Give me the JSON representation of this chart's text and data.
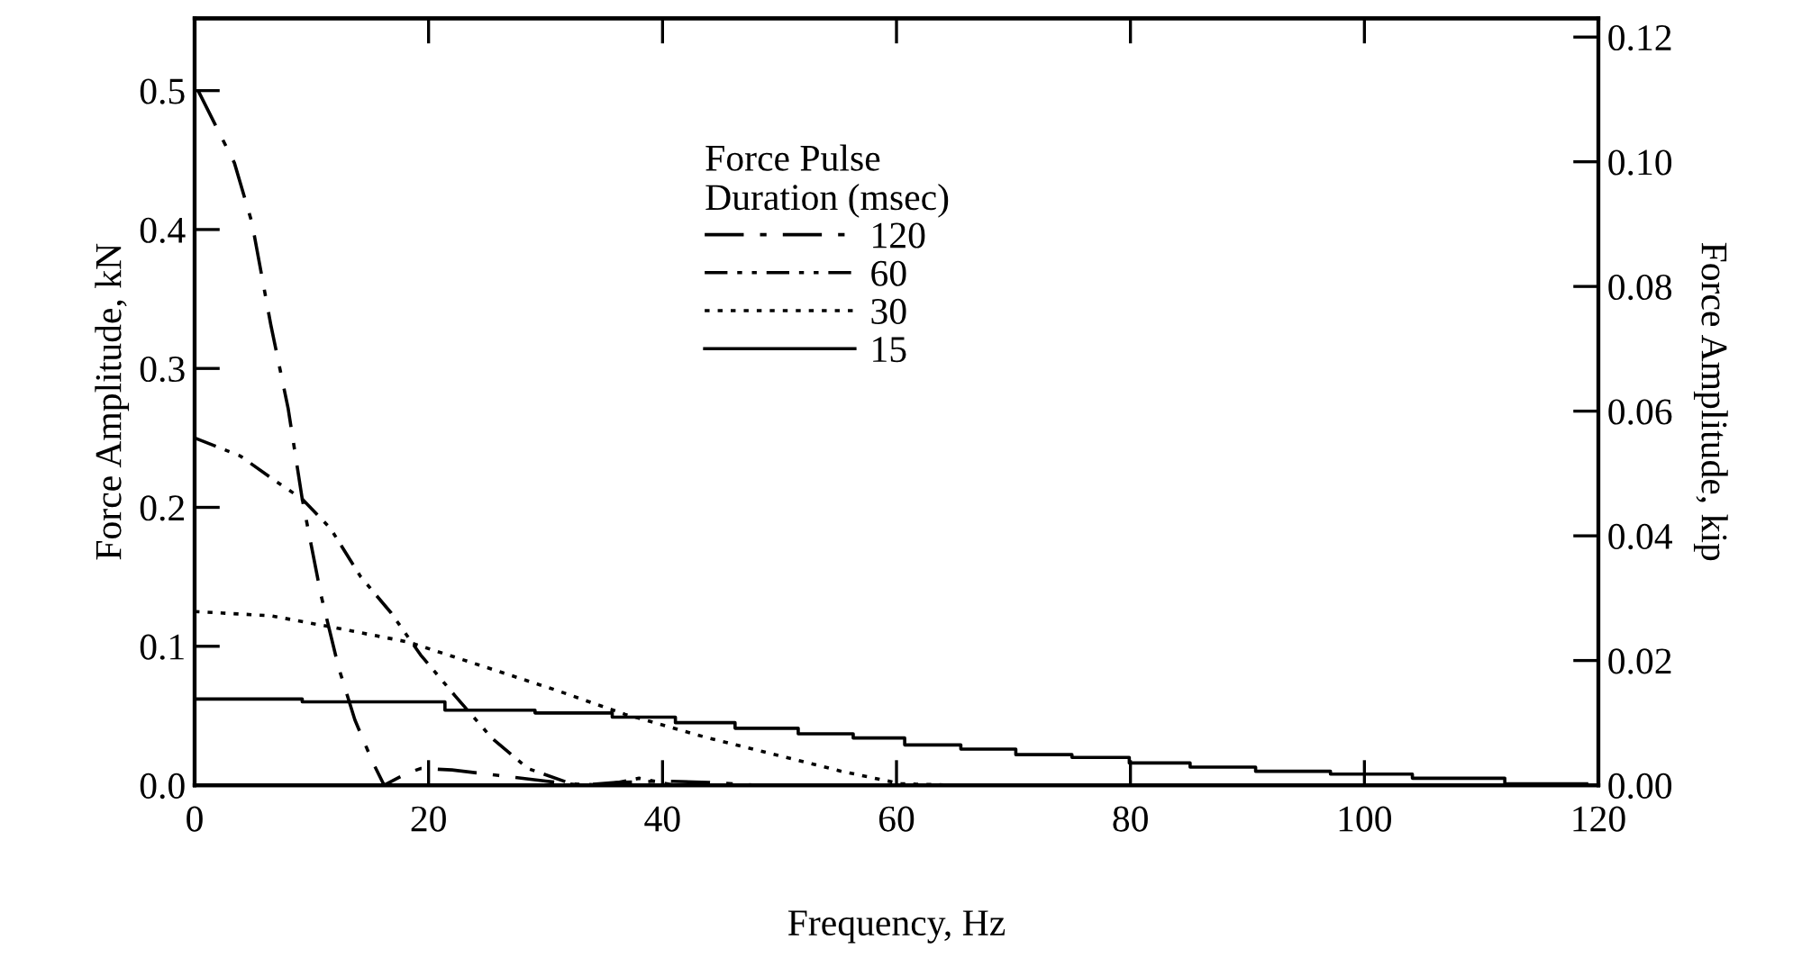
{
  "chart_data": {
    "type": "line",
    "xlabel": "Frequency, Hz",
    "ylabel": "Force Amplitude, kN",
    "y2label": "Force Amplitude, kip",
    "legend_title": "Force Pulse\nDuration (msec)",
    "legend": "top",
    "grid": false,
    "marker": "none",
    "xlim": [
      0,
      120
    ],
    "xticks": [
      0,
      20,
      40,
      60,
      80,
      100,
      120
    ],
    "ylim": [
      0,
      0.552
    ],
    "yticks": [
      {
        "value": 0,
        "label": "0.0"
      },
      0.1,
      0.2,
      0.3,
      0.4,
      0.5
    ],
    "y2lim": [
      0,
      0.123
    ],
    "y2ticks": [
      {
        "value": 0,
        "label": "0.00"
      },
      {
        "value": 0.02,
        "label": "0.02"
      },
      {
        "value": 0.04,
        "label": "0.04"
      },
      {
        "value": 0.06,
        "label": "0.06"
      },
      {
        "value": 0.08,
        "label": "0.08"
      },
      {
        "value": 0.1,
        "label": "0.10"
      },
      {
        "value": 0.12,
        "label": "0.12"
      }
    ],
    "series": [
      {
        "name": "120",
        "color": "#000000",
        "line_style": "longdashdot",
        "x": [
          0.3,
          3.4,
          4.9,
          6.5,
          8.0,
          9.2,
          10.8,
          12.3,
          13.7,
          15.2,
          16.2,
          18,
          19.3,
          22,
          26,
          30,
          33,
          36,
          40,
          44,
          48,
          120
        ],
        "values": [
          0.5,
          0.448,
          0.405,
          0.332,
          0.271,
          0.206,
          0.137,
          0.085,
          0.047,
          0.017,
          0.0,
          0.008,
          0.012,
          0.011,
          0.007,
          0.003,
          0.0,
          0.002,
          0.003,
          0.002,
          0.0,
          0.0
        ]
      },
      {
        "name": "60",
        "color": "#000000",
        "line_style": "dashdotdot",
        "x": [
          0,
          3.9,
          6.9,
          9.2,
          11.6,
          14.2,
          16.8,
          19.3,
          22.3,
          25.4,
          28.5,
          32.2,
          35,
          38,
          41,
          44,
          120
        ],
        "values": [
          0.25,
          0.237,
          0.219,
          0.206,
          0.185,
          0.15,
          0.124,
          0.094,
          0.064,
          0.034,
          0.012,
          0.001,
          0.0,
          0.005,
          0.0,
          0.0,
          0.0
        ]
      },
      {
        "name": "30",
        "color": "#000000",
        "line_style": "dotted",
        "x": [
          0,
          6.5,
          11.6,
          18.3,
          24.5,
          30.7,
          36.8,
          43.9,
          50.1,
          55.3,
          60.4,
          65,
          91
        ],
        "values": [
          0.125,
          0.122,
          0.114,
          0.103,
          0.086,
          0.069,
          0.051,
          0.034,
          0.021,
          0.01,
          0.001,
          0.0,
          0.0
        ]
      },
      {
        "name": "15",
        "color": "#000000",
        "type": "step",
        "line_style": "solid",
        "x": [
          0,
          9.2,
          21.4,
          29.1,
          35.7,
          41.1,
          46.2,
          51.6,
          56.3,
          60.7,
          65.5,
          70.2,
          75.0,
          79.9,
          85.1,
          90.7,
          97.1,
          104.1,
          112.0,
          119.0
        ],
        "values": [
          0.062,
          0.06,
          0.054,
          0.052,
          0.049,
          0.045,
          0.041,
          0.037,
          0.034,
          0.029,
          0.026,
          0.022,
          0.02,
          0.016,
          0.013,
          0.01,
          0.008,
          0.005,
          0.001,
          0.001
        ]
      }
    ]
  }
}
